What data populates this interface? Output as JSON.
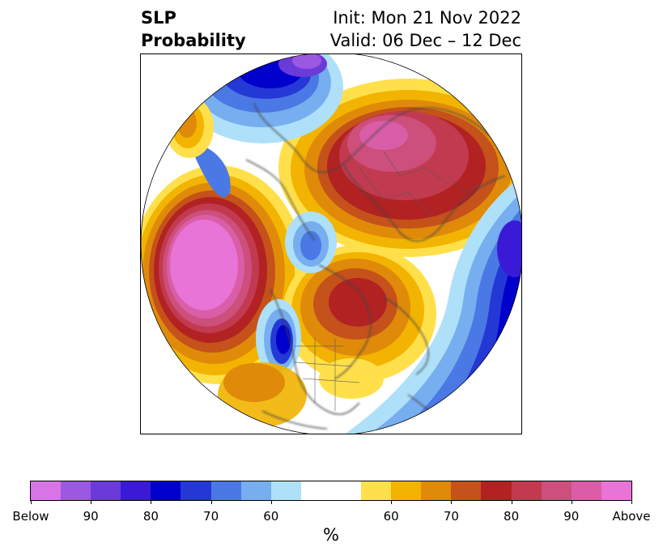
{
  "title": {
    "left_line1": "SLP",
    "left_line2": "Probability",
    "right_line1": "Init: Mon 21 Nov 2022",
    "right_line2": "Valid: 06 Dec – 12 Dec"
  },
  "map": {
    "projection": "north-polar-stereographic",
    "variable": "SLP",
    "field": "probability",
    "coastline_color": "#444444"
  },
  "colorbar": {
    "colors": [
      "#d873e8",
      "#9b58e1",
      "#6b3bd9",
      "#3a1ad6",
      "#0000cc",
      "#2438d6",
      "#4a78e5",
      "#76aeef",
      "#aee0fa",
      "#ffffff",
      "#ffe04a",
      "#f2b400",
      "#e08a0a",
      "#c4521a",
      "#b22222",
      "#c23a50",
      "#cc4f7c",
      "#d95ea7",
      "#e874d8"
    ],
    "labels": [
      "Below",
      "90",
      "80",
      "70",
      "60",
      "60",
      "70",
      "80",
      "90",
      "Above"
    ],
    "units": "%"
  }
}
